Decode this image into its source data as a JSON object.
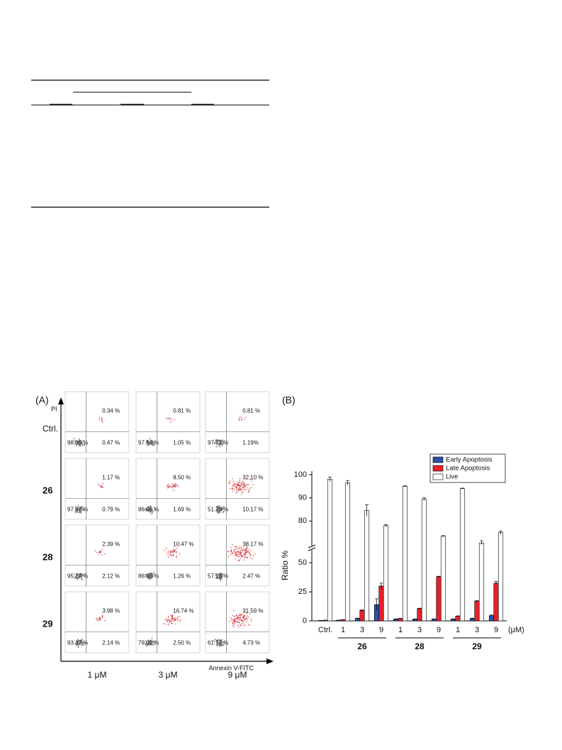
{
  "panel_a": {
    "label": "(A)",
    "y_axis": "PI",
    "x_axis": "Annexin V-FITC",
    "columns": [
      "1 μM",
      "3 μM",
      "9 μM"
    ],
    "rows": [
      {
        "label": "Ctrl.",
        "cells": [
          {
            "ur": "0.34 %",
            "ll": "98.95 %",
            "lr": "0.47 %"
          },
          {
            "ur": "0.81 %",
            "ll": "97.60 %",
            "lr": "1.05 %"
          },
          {
            "ur": "0.81 %",
            "ll": "97.71 %",
            "lr": "1.19%"
          }
        ]
      },
      {
        "label": "26",
        "cells": [
          {
            "ur": "1.17 %",
            "ll": "97.87 %",
            "lr": "0.79 %"
          },
          {
            "ur": "8.50 %",
            "ll": "86.00 %",
            "lr": "1.69 %"
          },
          {
            "ur": "32.10 %",
            "ll": "51.29 %",
            "lr": "10.17 %"
          }
        ]
      },
      {
        "label": "28",
        "cells": [
          {
            "ur": "2.39 %",
            "ll": "95.17 %",
            "lr": "2.12 %"
          },
          {
            "ur": "10.47 %",
            "ll": "86.90 %",
            "lr": "1.26 %"
          },
          {
            "ur": "38.17 %",
            "ll": "57.13 %",
            "lr": "2.47 %"
          }
        ]
      },
      {
        "label": "29",
        "cells": [
          {
            "ur": "3.98 %",
            "ll": "93.37 %",
            "lr": "2.14 %"
          },
          {
            "ur": "16.74 %",
            "ll": "79.01 %",
            "lr": "2.50 %"
          },
          {
            "ur": "31.59 %",
            "ll": "61.72 %",
            "lr": "4.73 %"
          }
        ]
      }
    ]
  },
  "chart_data": {
    "type": "bar",
    "label": "(B)",
    "y_label": "Ratio %",
    "x_unit": "(μM)",
    "categories": [
      "Ctrl.",
      "1",
      "3",
      "9",
      "1",
      "3",
      "9",
      "1",
      "3",
      "9"
    ],
    "groups": [
      "26",
      "28",
      "29"
    ],
    "ylim": [
      0,
      100
    ],
    "y_break": [
      55,
      70
    ],
    "yticks": [
      0,
      25,
      50,
      80,
      90,
      100
    ],
    "legend": "top-right",
    "series": [
      {
        "name": "Early Apoptosis",
        "color": "#2f4fa8",
        "values": [
          0.3,
          0.5,
          2,
          14,
          1.5,
          1.5,
          1.5,
          1.5,
          2,
          4.5
        ],
        "errors": [
          0.1,
          0.1,
          0.3,
          5,
          0.2,
          0.2,
          0.2,
          0.2,
          0.3,
          0.5
        ]
      },
      {
        "name": "Late Apoptosis",
        "color": "#e8202a",
        "values": [
          0.5,
          1,
          9,
          30,
          2,
          10.5,
          38,
          4,
          17,
          32.5
        ],
        "errors": [
          0.1,
          0.1,
          0.5,
          2.5,
          0.2,
          0.4,
          0.4,
          0.3,
          0.5,
          1.5
        ]
      },
      {
        "name": "Live",
        "color": "#ffffff",
        "values": [
          98,
          96.5,
          84.5,
          78,
          95,
          89.5,
          73.5,
          94,
          70.5,
          75
        ],
        "errors": [
          1,
          1,
          2.5,
          0.5,
          0.2,
          0.5,
          0.2,
          0.2,
          1,
          0.7
        ]
      }
    ]
  }
}
